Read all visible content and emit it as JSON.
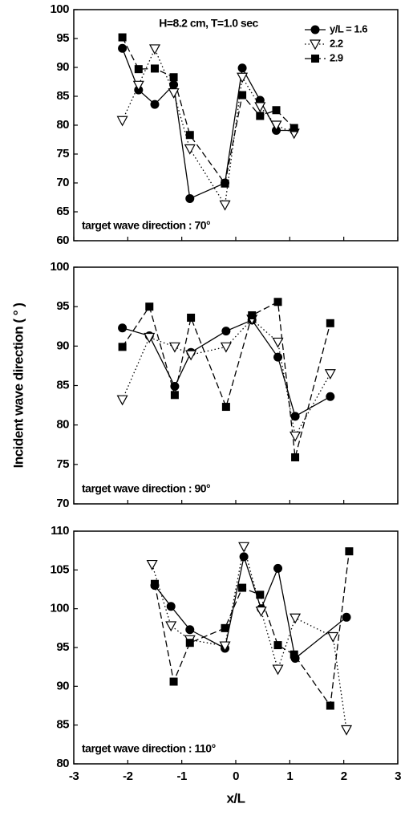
{
  "chart_data": [
    {
      "type": "line",
      "annotation": "H=8.2 cm, T=1.0 sec",
      "note": "target wave direction : 70°",
      "xlim": [
        -3,
        3
      ],
      "ylim": [
        60,
        100
      ],
      "yticks": [
        60,
        65,
        70,
        75,
        80,
        85,
        90,
        95,
        100
      ],
      "legend": "upper right",
      "series": [
        {
          "name": "y/L = 1.6",
          "color": "#000000",
          "marker": "circle",
          "dash": "solid",
          "x": [
            -2.1,
            -1.8,
            -1.5,
            -1.15,
            -0.85,
            -0.2,
            0.12,
            0.45,
            0.75,
            1.08
          ],
          "values": [
            93.3,
            86.1,
            83.6,
            87.0,
            67.3,
            70.0,
            89.9,
            84.3,
            79.1,
            79.1
          ]
        },
        {
          "name": "2.2",
          "color": "#000000",
          "marker": "triangle",
          "dash": "dotted",
          "x": [
            -2.1,
            -1.8,
            -1.5,
            -1.15,
            -0.85,
            -0.2,
            0.12,
            0.45,
            0.75,
            1.08
          ],
          "values": [
            80.8,
            86.9,
            93.2,
            85.6,
            75.9,
            66.2,
            88.3,
            83.2,
            80.0,
            78.6
          ]
        },
        {
          "name": "2.9",
          "color": "#000000",
          "marker": "square",
          "dash": "dashed",
          "x": [
            -2.1,
            -1.8,
            -1.5,
            -1.15,
            -0.85,
            -0.2,
            0.12,
            0.45,
            0.75,
            1.08
          ],
          "values": [
            95.2,
            89.7,
            89.8,
            88.3,
            78.3,
            69.9,
            85.2,
            81.6,
            82.6,
            79.5
          ]
        }
      ]
    },
    {
      "type": "line",
      "note": "target wave direction : 90°",
      "ylabel": "Incident wave direction ( ° )",
      "xlim": [
        -3,
        3
      ],
      "ylim": [
        70,
        100
      ],
      "yticks": [
        70,
        75,
        80,
        85,
        90,
        95,
        100
      ],
      "series": [
        {
          "name": "y/L = 1.6",
          "color": "#000000",
          "marker": "circle",
          "dash": "solid",
          "x": [
            -2.1,
            -1.6,
            -1.13,
            -0.83,
            -0.18,
            0.3,
            0.78,
            1.1,
            1.75
          ],
          "values": [
            92.3,
            91.3,
            84.9,
            89.2,
            91.9,
            93.3,
            88.6,
            81.1,
            83.6
          ]
        },
        {
          "name": "2.2",
          "color": "#000000",
          "marker": "triangle",
          "dash": "dotted",
          "x": [
            -2.1,
            -1.6,
            -1.13,
            -0.83,
            -0.18,
            0.3,
            0.78,
            1.1,
            1.75
          ],
          "values": [
            83.2,
            91.1,
            89.9,
            88.9,
            89.9,
            93.4,
            90.5,
            78.6,
            86.5
          ]
        },
        {
          "name": "2.9",
          "color": "#000000",
          "marker": "square",
          "dash": "dashed",
          "x": [
            -2.1,
            -1.6,
            -1.13,
            -0.83,
            -0.18,
            0.3,
            0.78,
            1.1,
            1.75
          ],
          "values": [
            89.9,
            95.0,
            83.8,
            93.6,
            82.3,
            93.9,
            95.6,
            75.9,
            92.9
          ]
        }
      ]
    },
    {
      "type": "line",
      "note": "target wave direction : 110°",
      "xlabel": "x/L",
      "xlim": [
        -3,
        3
      ],
      "xticks": [
        -3,
        -2,
        -1,
        0,
        1,
        2,
        3
      ],
      "ylim": [
        80,
        110
      ],
      "yticks": [
        80,
        85,
        90,
        95,
        100,
        105,
        110
      ],
      "series": [
        {
          "name": "y/L = 1.6",
          "color": "#000000",
          "marker": "circle",
          "dash": "solid",
          "x": [
            -1.5,
            -1.2,
            -0.85,
            -0.2,
            0.15,
            0.47,
            0.78,
            1.1,
            2.05
          ],
          "values": [
            103.0,
            100.3,
            97.3,
            94.9,
            106.7,
            100.0,
            105.2,
            93.6,
            98.9
          ]
        },
        {
          "name": "2.2",
          "color": "#000000",
          "marker": "triangle",
          "dash": "dotted",
          "x": [
            -1.55,
            -1.2,
            -0.85,
            -0.2,
            0.15,
            0.47,
            0.78,
            1.1,
            1.8,
            2.05
          ],
          "values": [
            105.7,
            97.8,
            96.0,
            95.2,
            108.0,
            99.7,
            92.2,
            98.8,
            96.4,
            84.4
          ]
        },
        {
          "name": "2.9",
          "color": "#000000",
          "marker": "square",
          "dash": "dashed",
          "x": [
            -1.5,
            -1.15,
            -0.85,
            -0.2,
            0.12,
            0.45,
            0.78,
            1.08,
            1.75,
            2.1
          ],
          "values": [
            103.2,
            90.6,
            95.6,
            97.5,
            102.7,
            101.8,
            95.3,
            94.1,
            87.5,
            107.4
          ]
        }
      ]
    }
  ]
}
